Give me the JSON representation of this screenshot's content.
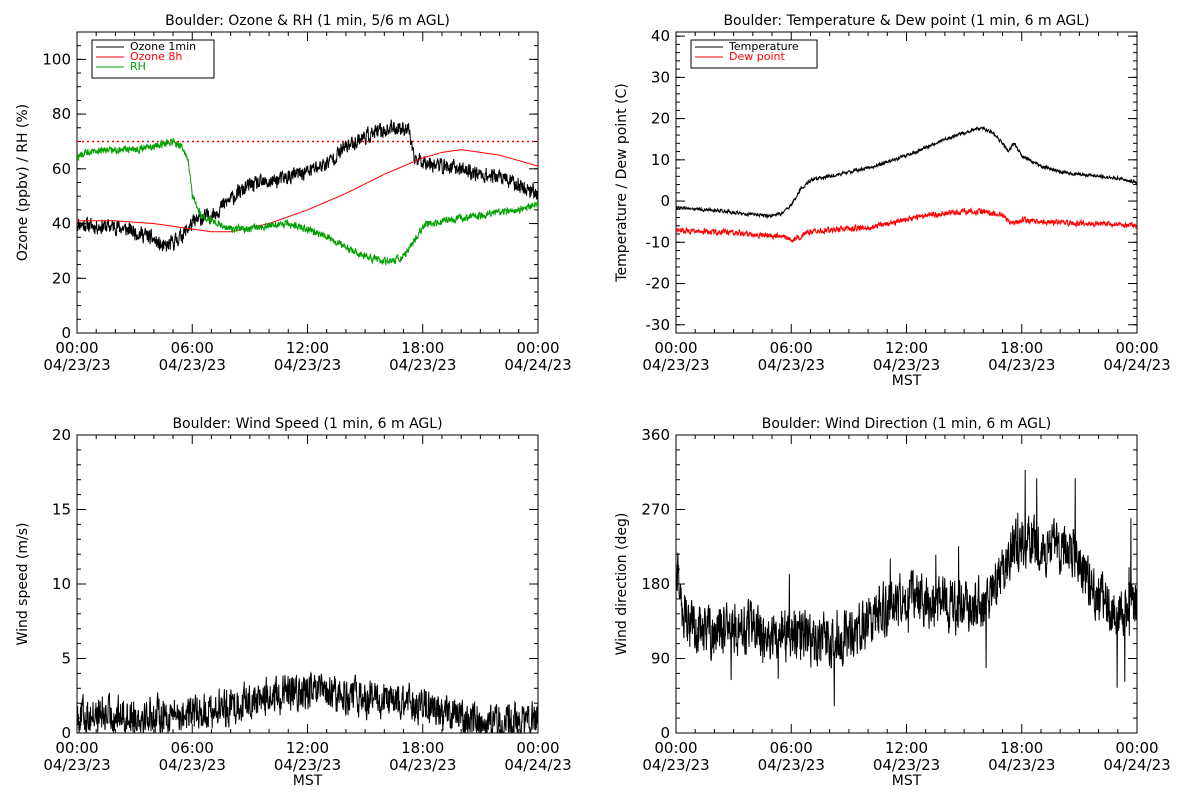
{
  "chart_data": [
    {
      "type": "line",
      "title": "Boulder: Ozone & RH (1 min, 5/6 m AGL)",
      "ylabel": "Ozone (ppbv) / RH (%)",
      "xlabel": "",
      "xlim": [
        0,
        24
      ],
      "ylim": [
        0,
        110
      ],
      "yticks": [
        "0",
        "20",
        "40",
        "60",
        "80",
        "100"
      ],
      "xtick_times": [
        "00:00",
        "06:00",
        "12:00",
        "18:00",
        "00:00"
      ],
      "xtick_dates": [
        "04/23/23",
        "04/23/23",
        "04/23/23",
        "04/23/23",
        "04/24/23"
      ],
      "reference_line": {
        "value": 70,
        "color": "#ff0000",
        "style": "dotted"
      },
      "legend": {
        "position": "top-left"
      },
      "series": [
        {
          "name": "Ozone 1min",
          "color": "#000000",
          "noise": 2.5,
          "x": [
            0,
            1,
            2,
            3,
            3.5,
            4,
            4.5,
            5,
            5.5,
            6,
            6.5,
            7,
            7.5,
            8,
            9,
            10,
            11,
            12,
            13,
            14,
            15,
            16,
            16.5,
            17,
            17.3,
            17.5,
            18,
            19,
            20,
            21,
            22,
            23,
            24
          ],
          "y": [
            40,
            39,
            39,
            37,
            36,
            34,
            31,
            33,
            36,
            40,
            42,
            43,
            46,
            49,
            54,
            55,
            57,
            59,
            62,
            68,
            72,
            74,
            75,
            75,
            74,
            64,
            63,
            61,
            60,
            58,
            57,
            54,
            51
          ]
        },
        {
          "name": "Ozone 8h",
          "color": "#ff0000",
          "noise": 0,
          "x": [
            0,
            2,
            4,
            6,
            7,
            8,
            10,
            12,
            14,
            16,
            18,
            19,
            20,
            21,
            22,
            23,
            24
          ],
          "y": [
            41,
            41,
            40,
            38,
            37,
            37,
            40,
            45,
            51,
            58,
            64,
            66,
            67,
            66,
            65,
            63,
            61
          ]
        },
        {
          "name": "RH",
          "color": "#00a000",
          "noise": 1.2,
          "x": [
            0,
            0.5,
            1,
            2,
            3,
            4,
            4.5,
            5,
            5.5,
            5.8,
            6,
            6.3,
            6.6,
            7,
            8,
            9,
            10,
            11,
            12,
            13,
            14,
            15,
            16,
            16.8,
            17,
            17.5,
            18,
            19,
            20,
            21,
            22,
            23,
            24
          ],
          "y": [
            64,
            66,
            67,
            67,
            67,
            68,
            69,
            70,
            68,
            62,
            50,
            45,
            42,
            41,
            38,
            38,
            39,
            40,
            38,
            35,
            31,
            28,
            26,
            27,
            28,
            33,
            39,
            41,
            42,
            43,
            44,
            45,
            47
          ]
        }
      ]
    },
    {
      "type": "line",
      "title": "Boulder: Temperature & Dew point (1 min, 6 m AGL)",
      "ylabel": "Temperature / Dew point (C)",
      "xlabel": "MST",
      "xlim": [
        0,
        24
      ],
      "ylim": [
        -32,
        41
      ],
      "yticks": [
        "-30",
        "-20",
        "-10",
        "0",
        "10",
        "20",
        "30",
        "40"
      ],
      "xtick_times": [
        "00:00",
        "06:00",
        "12:00",
        "18:00",
        "00:00"
      ],
      "xtick_dates": [
        "04/23/23",
        "04/23/23",
        "04/23/23",
        "04/23/23",
        "04/24/23"
      ],
      "legend": {
        "position": "top-left"
      },
      "series": [
        {
          "name": "Temperature",
          "color": "#000000",
          "noise": 0.35,
          "x": [
            0,
            1,
            2,
            3,
            4,
            5,
            5.5,
            6,
            6.5,
            7,
            8,
            9,
            10,
            11,
            12,
            13,
            14,
            15,
            15.5,
            16,
            16.5,
            17,
            17.3,
            17.6,
            18,
            19,
            20,
            21,
            22,
            23,
            24
          ],
          "y": [
            -1.5,
            -2,
            -2.2,
            -2.8,
            -3.3,
            -3.6,
            -3,
            -1,
            3,
            5,
            6,
            7,
            8,
            9.5,
            11,
            13,
            15,
            16.5,
            17.5,
            17.5,
            16.5,
            14,
            12,
            14,
            11,
            8.5,
            7,
            6.5,
            6,
            5.5,
            4.5
          ]
        },
        {
          "name": "Dew point",
          "color": "#ff0000",
          "noise": 0.6,
          "x": [
            0,
            2,
            4,
            5,
            5.5,
            6,
            6.5,
            7,
            8,
            9,
            10,
            11,
            12,
            13,
            14,
            15,
            16,
            17,
            17.5,
            18,
            19,
            20,
            22,
            24
          ],
          "y": [
            -7,
            -7.5,
            -8,
            -8.5,
            -8.5,
            -9.5,
            -8.5,
            -7.5,
            -7,
            -6.5,
            -6.5,
            -5.5,
            -4.5,
            -3.5,
            -3,
            -2.5,
            -2.5,
            -3.5,
            -5.5,
            -4.5,
            -5,
            -5.2,
            -5.5,
            -6
          ]
        }
      ]
    },
    {
      "type": "line",
      "title": "Boulder: Wind Speed (1 min, 6 m AGL)",
      "ylabel": "Wind speed (m/s)",
      "xlabel": "MST",
      "xlim": [
        0,
        24
      ],
      "ylim": [
        0,
        20
      ],
      "yticks": [
        "0",
        "5",
        "10",
        "15",
        "20"
      ],
      "xtick_times": [
        "00:00",
        "06:00",
        "12:00",
        "18:00",
        "00:00"
      ],
      "xtick_dates": [
        "04/23/23",
        "04/23/23",
        "04/23/23",
        "04/23/23",
        "04/24/23"
      ],
      "series": [
        {
          "color": "#000000",
          "noise": 1.1,
          "x": [
            0,
            2,
            4,
            6,
            8,
            9,
            10,
            11,
            12,
            13,
            14,
            15,
            16,
            17,
            18,
            19,
            20,
            21,
            22,
            23,
            24
          ],
          "y": [
            1.2,
            1.2,
            1.2,
            1.3,
            1.8,
            2.2,
            2.4,
            2.6,
            2.7,
            2.6,
            2.5,
            2.3,
            2.1,
            2,
            1.8,
            1.5,
            1.0,
            0.8,
            0.7,
            0.7,
            0.8
          ]
        }
      ]
    },
    {
      "type": "line",
      "title": "Boulder: Wind Direction (1 min, 6 m AGL)",
      "ylabel": "Wind direction (deg)",
      "xlabel": "MST",
      "xlim": [
        0,
        24
      ],
      "ylim": [
        0,
        360
      ],
      "yticks": [
        "0",
        "90",
        "180",
        "270",
        "360"
      ],
      "xtick_times": [
        "00:00",
        "06:00",
        "12:00",
        "18:00",
        "00:00"
      ],
      "xtick_dates": [
        "04/23/23",
        "04/23/23",
        "04/23/23",
        "04/23/23",
        "04/24/23"
      ],
      "series": [
        {
          "color": "#000000",
          "noise": 28,
          "x": [
            0,
            0.3,
            1,
            2,
            3,
            4,
            5,
            6,
            7,
            8,
            9,
            10,
            11,
            12,
            13,
            14,
            15,
            16,
            17,
            17.5,
            18,
            19,
            20,
            21,
            22,
            23,
            24
          ],
          "y": [
            210,
            140,
            125,
            120,
            125,
            125,
            120,
            118,
            115,
            110,
            120,
            140,
            150,
            165,
            160,
            155,
            150,
            155,
            195,
            220,
            225,
            228,
            225,
            210,
            160,
            140,
            160
          ]
        }
      ]
    }
  ]
}
